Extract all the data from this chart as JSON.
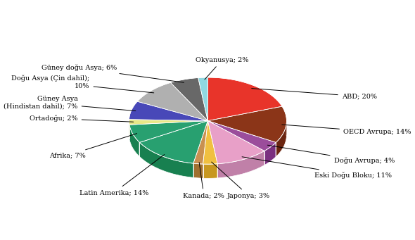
{
  "values": [
    20,
    14,
    4,
    11,
    3,
    2,
    14,
    7,
    2,
    7,
    10,
    6,
    2
  ],
  "colors_top": [
    "#e8342a",
    "#8b3518",
    "#9b4d9b",
    "#e8a0c8",
    "#f0c040",
    "#c89050",
    "#28a070",
    "#28a070",
    "#e8e888",
    "#4848b8",
    "#b0b0b0",
    "#686868",
    "#90d8e0"
  ],
  "colors_side": [
    "#c02010",
    "#6b2510",
    "#7b3080",
    "#c080a8",
    "#c89820",
    "#a07030",
    "#188050",
    "#188050",
    "#c8c868",
    "#3030a0",
    "#909090",
    "#484848",
    "#60b8c0"
  ],
  "label_texts": [
    "ABD; 20%",
    "OECD Avrupa; 14%",
    "Doğu Avrupa; 4%",
    "Eski Doğu Bloku; 11%",
    "Japonya; 3%",
    "Kanada; 2%",
    "Latin Amerika; 14%",
    "Afrika; 7%",
    "Ortadoğu; 2%",
    "Güney Asya\n(Hindistan dahil); 7%",
    "Doğu Asya (Çin dahil);\n10%",
    "Güney doğu Asya; 6%",
    "Okyanusya; 2%"
  ],
  "startangle": 90,
  "figsize": [
    5.9,
    3.41
  ],
  "dpi": 100
}
